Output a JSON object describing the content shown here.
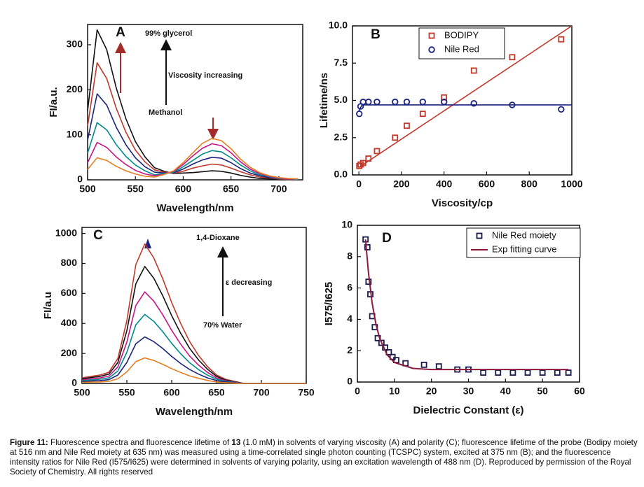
{
  "chart_data": [
    {
      "type": "line",
      "panel_label": "A",
      "x_label": "Wavelength/nm",
      "y_label": "FI/a.u.",
      "annotations": [
        "99% glycerol",
        "Viscosity increasing",
        "Methanol"
      ],
      "xlim": [
        500,
        725
      ],
      "ylim": [
        0,
        345
      ],
      "xticks": [
        500,
        550,
        600,
        650,
        700
      ],
      "yticks": [
        0,
        100,
        200,
        300
      ],
      "x": [
        500,
        510,
        520,
        530,
        540,
        550,
        560,
        570,
        580,
        590,
        600,
        610,
        620,
        630,
        640,
        650,
        660,
        670,
        680,
        690,
        700,
        710,
        720
      ],
      "series": [
        {
          "color": "#111111",
          "values": [
            153,
            333,
            289,
            204,
            136,
            85,
            51,
            27,
            19,
            14,
            15,
            16,
            18,
            20,
            19,
            15,
            10,
            6,
            3,
            2,
            1,
            1,
            0
          ]
        },
        {
          "color": "#c0392b",
          "values": [
            119,
            260,
            225,
            159,
            106,
            66,
            40,
            22,
            17,
            15,
            19,
            26,
            31,
            35,
            33,
            26,
            18,
            11,
            6,
            4,
            2,
            1,
            1
          ]
        },
        {
          "color": "#1a237e",
          "values": [
            88,
            191,
            166,
            117,
            78,
            49,
            29,
            17,
            15,
            16,
            24,
            35,
            44,
            50,
            48,
            38,
            25,
            15,
            9,
            5,
            3,
            2,
            1
          ]
        },
        {
          "color": "#008b8b",
          "values": [
            59,
            127,
            111,
            78,
            52,
            33,
            20,
            11,
            14,
            17,
            29,
            43,
            57,
            65,
            62,
            49,
            33,
            20,
            11,
            7,
            3,
            2,
            1
          ]
        },
        {
          "color": "#c71585",
          "values": [
            38,
            83,
            72,
            51,
            34,
            21,
            13,
            9,
            12,
            19,
            34,
            53,
            70,
            80,
            76,
            60,
            40,
            24,
            14,
            8,
            4,
            2,
            2
          ]
        },
        {
          "color": "#e67e22",
          "values": [
            23,
            49,
            43,
            30,
            20,
            13,
            8,
            6,
            12,
            20,
            38,
            60,
            81,
            92,
            87,
            69,
            46,
            28,
            16,
            9,
            5,
            3,
            2
          ]
        }
      ]
    },
    {
      "type": "scatter",
      "panel_label": "B",
      "x_label": "Viscosity/cp",
      "y_label": "Lifetime/ns",
      "xlim": [
        -30,
        1000
      ],
      "ylim": [
        0,
        10
      ],
      "xticks": [
        0,
        200,
        400,
        600,
        800,
        1000
      ],
      "yticks": [
        {
          "value": 0,
          "label": "0.0"
        },
        2.5,
        {
          "value": 5,
          "label": "5.0"
        },
        7.5,
        {
          "value": 10,
          "label": "10.0"
        }
      ],
      "legend": "top-right",
      "series": [
        {
          "name": "BODIPY",
          "color": "#c0392b",
          "marker": "square",
          "x": [
            2,
            8,
            20,
            45,
            85,
            170,
            225,
            300,
            400,
            540,
            720,
            950
          ],
          "values": [
            0.6,
            0.7,
            0.8,
            1.1,
            1.6,
            2.5,
            3.3,
            4.1,
            5.2,
            7.0,
            7.9,
            9.1
          ],
          "fit": {
            "x": [
              0,
              1000
            ],
            "values": [
              0.5,
              10
            ]
          }
        },
        {
          "name": "Nile Red",
          "color": "#1a237e",
          "marker": "circle",
          "x": [
            2,
            8,
            20,
            45,
            85,
            170,
            225,
            300,
            400,
            540,
            720,
            950
          ],
          "values": [
            4.1,
            4.6,
            4.9,
            4.9,
            4.9,
            4.9,
            4.9,
            4.9,
            4.9,
            4.8,
            4.7,
            4.4
          ],
          "fit": {
            "x": [
              0,
              15,
              1000
            ],
            "values": [
              4.3,
              4.7,
              4.7
            ]
          }
        }
      ]
    },
    {
      "type": "line",
      "panel_label": "C",
      "x_label": "Wavelength/nm",
      "y_label": "FI/a.u",
      "annotations": [
        "1,4-Dioxane",
        "ε decreasing",
        "70% Water"
      ],
      "xlim": [
        500,
        750
      ],
      "ylim": [
        0,
        1040
      ],
      "xticks": [
        500,
        550,
        600,
        650,
        700,
        750
      ],
      "yticks": [
        0,
        200,
        400,
        600,
        800,
        1000
      ],
      "x": [
        500,
        510,
        520,
        530,
        540,
        550,
        560,
        570,
        580,
        590,
        600,
        610,
        620,
        630,
        640,
        650,
        660,
        670,
        680,
        690,
        700,
        710,
        720,
        730,
        740,
        750
      ],
      "series": [
        {
          "color": "#c0392b",
          "values": [
            37,
            47,
            56,
            74,
            167,
            419,
            791,
            930,
            837,
            698,
            539,
            400,
            279,
            186,
            112,
            56,
            28,
            14,
            0,
            0,
            0,
            0,
            0,
            0,
            0,
            0
          ]
        },
        {
          "color": "#111111",
          "values": [
            31,
            39,
            47,
            62,
            140,
            351,
            663,
            780,
            702,
            585,
            452,
            335,
            234,
            156,
            94,
            47,
            23,
            12,
            0,
            0,
            0,
            0,
            0,
            0,
            0,
            0
          ]
        },
        {
          "color": "#c71585",
          "values": [
            24,
            31,
            37,
            49,
            110,
            275,
            519,
            610,
            549,
            458,
            354,
            262,
            183,
            122,
            73,
            37,
            18,
            9,
            0,
            0,
            0,
            0,
            0,
            0,
            0,
            0
          ]
        },
        {
          "color": "#008b8b",
          "values": [
            18,
            23,
            28,
            37,
            83,
            207,
            391,
            460,
            414,
            345,
            267,
            198,
            138,
            92,
            55,
            28,
            14,
            7,
            0,
            0,
            0,
            0,
            0,
            0,
            0,
            0
          ]
        },
        {
          "color": "#1a237e",
          "values": [
            12,
            16,
            19,
            25,
            56,
            140,
            264,
            310,
            279,
            233,
            180,
            133,
            93,
            62,
            37,
            19,
            9,
            5,
            0,
            0,
            0,
            0,
            0,
            0,
            0,
            0
          ]
        },
        {
          "color": "#e67e22",
          "values": [
            7,
            9,
            10,
            14,
            31,
            77,
            145,
            170,
            153,
            128,
            99,
            73,
            51,
            34,
            20,
            10,
            5,
            3,
            0,
            0,
            0,
            0,
            0,
            0,
            0,
            0
          ]
        }
      ]
    },
    {
      "type": "scatter",
      "panel_label": "D",
      "x_label": "Dielectric Constant (ε)",
      "y_label": "I575/I625",
      "xlim": [
        0,
        60
      ],
      "ylim": [
        0,
        10
      ],
      "xticks": [
        0,
        10,
        20,
        30,
        40,
        50,
        60
      ],
      "yticks": [
        0,
        2,
        4,
        6,
        8,
        10
      ],
      "legend": "top-right",
      "series": [
        {
          "name": "Nile Red moiety",
          "color": "#1a1a4e",
          "marker": "square",
          "x": [
            2.2,
            2.7,
            3,
            3.5,
            4,
            4.7,
            5.5,
            6.5,
            7.5,
            8.5,
            9.5,
            10.5,
            13,
            18,
            22,
            27,
            30,
            34,
            38,
            42,
            46,
            50,
            54,
            57
          ],
          "values": [
            9.1,
            8.6,
            6.4,
            5.6,
            4.2,
            3.5,
            2.8,
            2.5,
            2.2,
            1.9,
            1.6,
            1.4,
            1.2,
            1.1,
            1.0,
            0.8,
            0.8,
            0.6,
            0.6,
            0.6,
            0.6,
            0.6,
            0.6,
            0.6
          ]
        },
        {
          "name": "Exp fitting curve",
          "color": "#8b1a3a",
          "marker": "line",
          "x": [
            2.2,
            3,
            4,
            5,
            6,
            8,
            10,
            15,
            20,
            57
          ],
          "values": [
            9.1,
            6.94,
            5.03,
            3.71,
            2.8,
            1.74,
            1.25,
            0.87,
            0.8,
            0.8
          ]
        }
      ]
    }
  ],
  "caption": {
    "label": "Figure 11:",
    "text_before": " Fluorescence spectra and fluorescence lifetime of ",
    "compound": "13",
    "text_after": " (1.0 mM) in solvents of varying viscosity (A) and polarity (C); fluorescence lifetime of the probe (Bodipy moiety at 516 nm and Nile Red moiety at 635 nm) was measured using a time-correlated single photon counting (TCSPC) system, excited at 375 nm (B); and the fluorescence intensity ratios for Nile Red (I575/I625) were determined in solvents of varying polarity, using an excitation wavelength of 488 nm (D). Reproduced by permission of the Royal Society of Chemistry. All rights reserved"
  }
}
